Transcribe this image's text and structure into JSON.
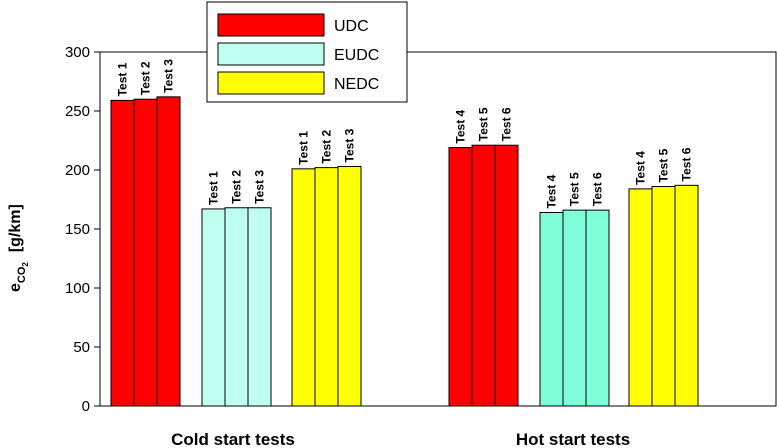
{
  "chart_data": {
    "type": "bar",
    "ylabel_main": "e",
    "ylabel_sub": "CO",
    "ylabel_subsub": "2",
    "ylabel_unit": "[g/km]",
    "ylim": [
      0,
      300
    ],
    "yticks": [
      "0",
      "50",
      "100",
      "150",
      "200",
      "250",
      "300"
    ],
    "legend_position": "top-center",
    "legend": [
      {
        "name": "UDC",
        "color": "#ff0000"
      },
      {
        "name": "EUDC",
        "color": "#bffff0"
      },
      {
        "name": "NEDC",
        "color": "#ffff00"
      }
    ],
    "groups": [
      {
        "label": "Cold start tests",
        "clusters": [
          {
            "series": "UDC",
            "color": "#ff0000",
            "tests": [
              "Test 1",
              "Test 2",
              "Test 3"
            ],
            "values": [
              259,
              260,
              262
            ]
          },
          {
            "series": "EUDC",
            "color": "#bffff0",
            "tests": [
              "Test 1",
              "Test 2",
              "Test 3"
            ],
            "values": [
              167,
              168,
              168
            ]
          },
          {
            "series": "NEDC",
            "color": "#ffff00",
            "tests": [
              "Test 1",
              "Test 2",
              "Test 3"
            ],
            "values": [
              201,
              202,
              203
            ]
          }
        ]
      },
      {
        "label": "Hot start tests",
        "clusters": [
          {
            "series": "UDC",
            "color": "#ff0000",
            "tests": [
              "Test 4",
              "Test 5",
              "Test 6"
            ],
            "values": [
              219,
              221,
              221
            ]
          },
          {
            "series": "EUDC",
            "color": "#7fffd8",
            "tests": [
              "Test 4",
              "Test 5",
              "Test 6"
            ],
            "values": [
              164,
              166,
              166
            ]
          },
          {
            "series": "NEDC",
            "color": "#ffff00",
            "tests": [
              "Test 4",
              "Test 5",
              "Test 6"
            ],
            "values": [
              184,
              186,
              187
            ]
          }
        ]
      }
    ]
  }
}
